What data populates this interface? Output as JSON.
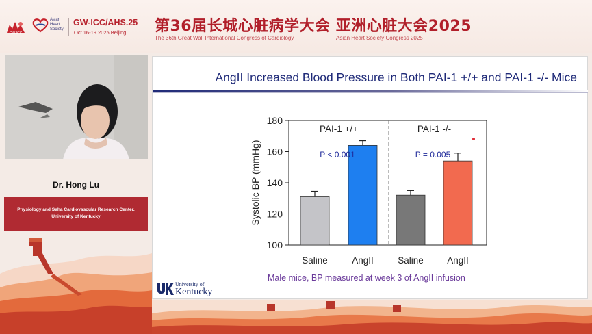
{
  "header": {
    "logo_gw_text": "GW-ICC",
    "ahs_logo_lines": [
      "Asian",
      "Heart",
      "Society"
    ],
    "conference_short": "GW-ICC/AHS.25",
    "conference_dates": "Oct.16-19 2025 Beijing",
    "title_cn": "第36届长城心脏病学大会 亚洲心脏大会2025",
    "subtitle_en_1": "The 36th Great Wall International Congress of Cardiology",
    "subtitle_en_2": "Asian Heart Society Congress 2025"
  },
  "speaker": {
    "name": "Dr. Hong Lu",
    "affiliation_line1": "Physiology and Saha Cardiovascular Research Center,",
    "affiliation_line2": "University of Kentucky"
  },
  "slide": {
    "title": "AngII Increased Blood Pressure in Both PAI-1 +/+ and PAI-1 -/- Mice",
    "caption": "Male mice, BP measured at week 3 of AngII infusion",
    "logo_line1": "University of",
    "logo_line2": "Kentucky"
  },
  "colors": {
    "brand_red": "#b11f2a",
    "title_navy": "#1f2a78",
    "caption_purple": "#6a3a9a",
    "saline_wt": "#c4c4c8",
    "angii_wt": "#1e7ff0",
    "saline_ko": "#787878",
    "angii_ko": "#f26a4f"
  },
  "chart_data": {
    "type": "bar",
    "ylabel": "Systolic BP (mmHg)",
    "ylim": [
      100,
      180
    ],
    "yticks": [
      100,
      120,
      140,
      160,
      180
    ],
    "categories": [
      "Saline",
      "AngII",
      "Saline",
      "AngII"
    ],
    "values": [
      131,
      164,
      132,
      154
    ],
    "errors": [
      3.5,
      3,
      3,
      5
    ],
    "colors": [
      "#c4c4c8",
      "#1e7ff0",
      "#787878",
      "#f26a4f"
    ],
    "panels": [
      {
        "label": "PAI-1 +/+",
        "bars": [
          0,
          1
        ],
        "annotation": "P < 0.001"
      },
      {
        "label": "PAI-1 -/-",
        "bars": [
          2,
          3
        ],
        "annotation": "P = 0.005"
      }
    ],
    "grid": false
  }
}
